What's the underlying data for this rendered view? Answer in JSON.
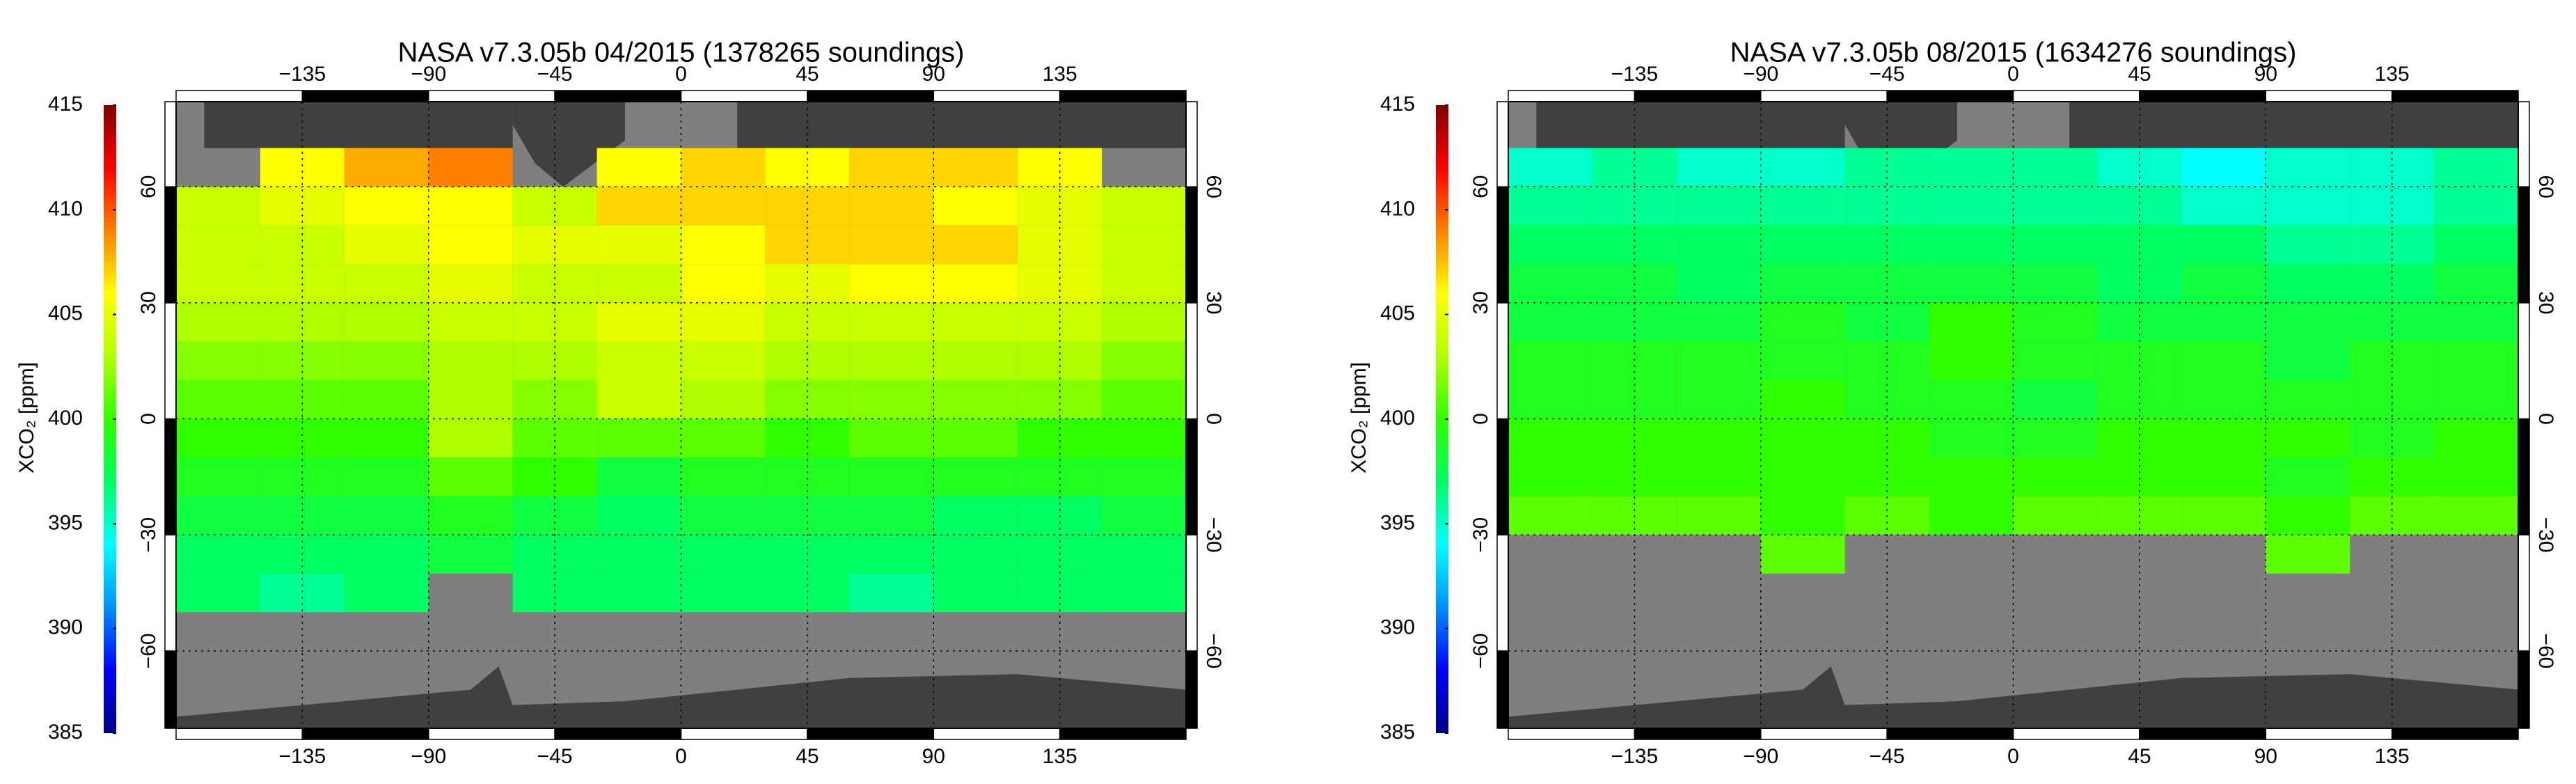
{
  "maps": [
    {
      "title": "NASA v7.3.05b 04/2015 (1378265 soundings)",
      "colorbar_label": "XCO₂ [ppm]",
      "clim": [
        385,
        415
      ],
      "cticks": [
        385,
        390,
        395,
        400,
        405,
        410,
        415
      ],
      "colormap": [
        "#00008c",
        "#0000ff",
        "#0090ff",
        "#00ffff",
        "#00ff60",
        "#30ff00",
        "#b0ff00",
        "#ffff00",
        "#ff8000",
        "#ff0000",
        "#800000"
      ],
      "xlim": [
        -180,
        180
      ],
      "ylim": [
        -80,
        82
      ],
      "xticks": [
        {
          "value": -135,
          "label": "−135"
        },
        {
          "value": -90,
          "label": "−90"
        },
        {
          "value": -45,
          "label": "−45"
        },
        0,
        45,
        90,
        135
      ],
      "yticks": [
        {
          "value": -60,
          "label": "−60"
        },
        {
          "value": -30,
          "label": "−30"
        },
        0,
        30,
        60
      ],
      "grid": true,
      "lon": [
        -165,
        -135,
        -105,
        -75,
        -45,
        -15,
        15,
        45,
        75,
        105,
        135,
        165
      ],
      "lat": [
        65,
        55,
        45,
        35,
        25,
        15,
        5,
        -5,
        -15,
        -25,
        -35,
        -45
      ],
      "values": [
        [
          null,
          406,
          408,
          409,
          null,
          406,
          407,
          406,
          407,
          407,
          406,
          null
        ],
        [
          404,
          405,
          406,
          406,
          404,
          407,
          407,
          407,
          407,
          406,
          405,
          404
        ],
        [
          404,
          404,
          405,
          406,
          405,
          405,
          406,
          407,
          407,
          407,
          405,
          404
        ],
        [
          404,
          404,
          404,
          405,
          404,
          404,
          406,
          405,
          406,
          406,
          405,
          404
        ],
        [
          403,
          403,
          403,
          404,
          404,
          405,
          405,
          404,
          404,
          404,
          404,
          403
        ],
        [
          402,
          402,
          402,
          403,
          403,
          404,
          404,
          403,
          403,
          403,
          403,
          402
        ],
        [
          401,
          401,
          401,
          403,
          402,
          404,
          403,
          402,
          402,
          402,
          402,
          401
        ],
        [
          400,
          400,
          400,
          403,
          401,
          401,
          401,
          400,
          401,
          401,
          400,
          400
        ],
        [
          399,
          399,
          399,
          401,
          400,
          398,
          399,
          399,
          399,
          399,
          399,
          399
        ],
        [
          398,
          398,
          398,
          399,
          398,
          397,
          398,
          398,
          398,
          397,
          397,
          398
        ],
        [
          397,
          397,
          397,
          398,
          397,
          397,
          397,
          397,
          397,
          397,
          397,
          397
        ],
        [
          397,
          396,
          397,
          null,
          397,
          397,
          397,
          397,
          396,
          397,
          397,
          397
        ]
      ]
    },
    {
      "title": "NASA v7.3.05b 08/2015 (1634276 soundings)",
      "colorbar_label": "XCO₂ [ppm]",
      "clim": [
        385,
        415
      ],
      "cticks": [
        385,
        390,
        395,
        400,
        405,
        410,
        415
      ],
      "colormap": [
        "#00008c",
        "#0000ff",
        "#0090ff",
        "#00ffff",
        "#00ff60",
        "#30ff00",
        "#b0ff00",
        "#ffff00",
        "#ff8000",
        "#ff0000",
        "#800000"
      ],
      "xlim": [
        -180,
        180
      ],
      "ylim": [
        -80,
        82
      ],
      "xticks": [
        {
          "value": -135,
          "label": "−135"
        },
        {
          "value": -90,
          "label": "−90"
        },
        {
          "value": -45,
          "label": "−45"
        },
        0,
        45,
        90,
        135
      ],
      "yticks": [
        {
          "value": -60,
          "label": "−60"
        },
        {
          "value": -30,
          "label": "−30"
        },
        0,
        30,
        60
      ],
      "grid": true,
      "lon": [
        -165,
        -135,
        -105,
        -75,
        -45,
        -15,
        15,
        45,
        75,
        105,
        135,
        165
      ],
      "lat": [
        65,
        55,
        45,
        35,
        25,
        15,
        5,
        -5,
        -15,
        -25,
        -35,
        -45
      ],
      "values": [
        [
          395,
          396,
          395,
          395,
          396,
          396,
          396,
          395,
          394,
          395,
          395,
          396
        ],
        [
          396,
          396,
          396,
          396,
          396,
          396,
          396,
          396,
          395,
          395,
          395,
          396
        ],
        [
          397,
          397,
          397,
          397,
          397,
          397,
          397,
          397,
          397,
          396,
          396,
          397
        ],
        [
          398,
          398,
          397,
          398,
          398,
          398,
          398,
          397,
          398,
          397,
          397,
          398
        ],
        [
          398,
          398,
          398,
          399,
          398,
          400,
          399,
          398,
          398,
          398,
          398,
          398
        ],
        [
          399,
          399,
          399,
          399,
          399,
          400,
          399,
          399,
          399,
          398,
          399,
          399
        ],
        [
          399,
          399,
          399,
          400,
          399,
          399,
          398,
          399,
          399,
          399,
          399,
          399
        ],
        [
          400,
          400,
          400,
          400,
          400,
          399,
          399,
          400,
          400,
          400,
          399,
          400
        ],
        [
          400,
          400,
          400,
          400,
          400,
          400,
          400,
          400,
          400,
          399,
          400,
          400
        ],
        [
          401,
          401,
          401,
          400,
          401,
          400,
          401,
          401,
          401,
          400,
          401,
          401
        ],
        [
          null,
          null,
          null,
          401,
          null,
          null,
          null,
          null,
          null,
          401,
          null,
          null
        ],
        [
          null,
          null,
          null,
          null,
          null,
          null,
          null,
          null,
          null,
          null,
          null,
          null
        ]
      ]
    }
  ]
}
